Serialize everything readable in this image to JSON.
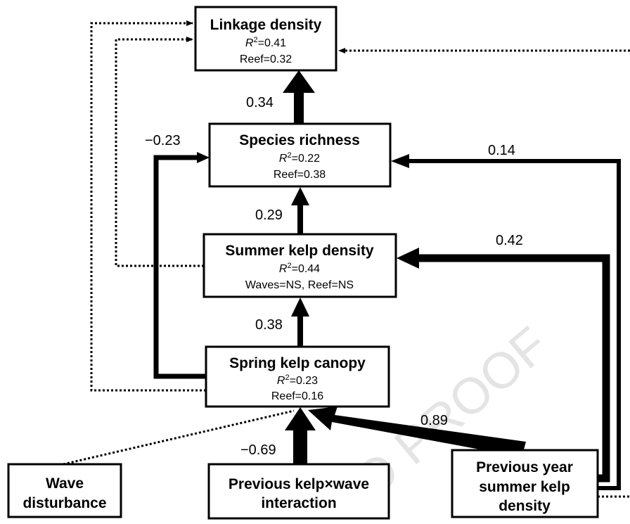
{
  "r_symbol": "R",
  "r_exponent": "2",
  "watermark": "ED PROOF",
  "nodes": [
    {
      "label": "Linkage density",
      "stat": "=0.41",
      "note": "Reef=0.32"
    },
    {
      "label": "Species richness",
      "stat": "=0.22",
      "note": "Reef=0.38"
    },
    {
      "label": "Summer kelp density",
      "stat": "=0.44",
      "note": "Waves=NS, Reef=NS"
    },
    {
      "label": "Spring kelp canopy",
      "stat": "=0.23",
      "note": "Reef=0.16"
    },
    {
      "lines": [
        "Wave",
        "disturbance"
      ]
    },
    {
      "lines": [
        "Previous kelp×wave",
        "interaction"
      ]
    },
    {
      "lines": [
        "Previous year",
        "summer kelp",
        "density"
      ]
    }
  ],
  "edges": [
    {
      "label": "0.34"
    },
    {
      "label": "−0.23"
    },
    {
      "label": "0.14"
    },
    {
      "label": "0.29"
    },
    {
      "label": "0.42"
    },
    {
      "label": "0.38"
    },
    {
      "label": "0.89"
    },
    {
      "label": "−0.69"
    }
  ]
}
